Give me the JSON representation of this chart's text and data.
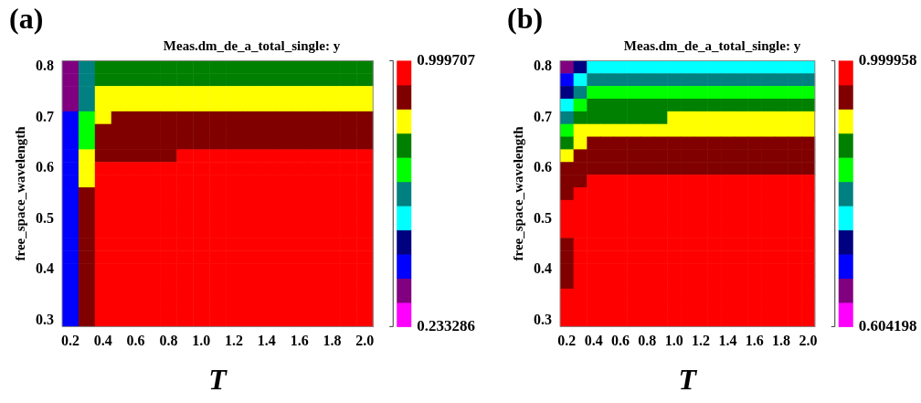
{
  "chart_data": [
    {
      "type": "heatmap",
      "title": "(a)",
      "subtitle": "Meas.dm_de_a_total_single: y",
      "xlabel": "T",
      "ylabel": "free_space_wavelength",
      "categories": [
        "0.2",
        null,
        "0.4",
        null,
        "0.6",
        null,
        "0.8",
        null,
        "1.0",
        null,
        "1.2",
        null,
        "1.4",
        null,
        "1.6",
        null,
        "1.8",
        null,
        "2.0"
      ],
      "y_categories": [
        "0.8",
        null,
        null,
        null,
        "0.7",
        null,
        null,
        null,
        "0.6",
        null,
        null,
        null,
        "0.5",
        null,
        null,
        null,
        "0.4",
        null,
        null,
        null,
        "0.3"
      ],
      "cells": [
        [
          0.338,
          0.616,
          0.756,
          0.756,
          0.756,
          0.756,
          0.756,
          0.756,
          0.756,
          0.756,
          0.756,
          0.756,
          0.756,
          0.756,
          0.756,
          0.756,
          0.756,
          0.756,
          0.756
        ],
        [
          0.338,
          0.616,
          0.756,
          0.756,
          0.756,
          0.756,
          0.756,
          0.756,
          0.756,
          0.756,
          0.756,
          0.756,
          0.756,
          0.756,
          0.756,
          0.756,
          0.756,
          0.756,
          0.756
        ],
        [
          0.338,
          0.616,
          0.826,
          0.826,
          0.826,
          0.826,
          0.826,
          0.826,
          0.826,
          0.826,
          0.826,
          0.826,
          0.826,
          0.826,
          0.826,
          0.826,
          0.826,
          0.826,
          0.826
        ],
        [
          0.338,
          0.616,
          0.826,
          0.826,
          0.826,
          0.826,
          0.826,
          0.826,
          0.826,
          0.826,
          0.826,
          0.826,
          0.826,
          0.826,
          0.826,
          0.826,
          0.826,
          0.826,
          0.826
        ],
        [
          0.407,
          0.686,
          0.826,
          0.895,
          0.895,
          0.895,
          0.895,
          0.895,
          0.895,
          0.895,
          0.895,
          0.895,
          0.895,
          0.895,
          0.895,
          0.895,
          0.895,
          0.895,
          0.895
        ],
        [
          0.407,
          0.686,
          0.895,
          0.895,
          0.895,
          0.895,
          0.895,
          0.895,
          0.895,
          0.895,
          0.895,
          0.895,
          0.895,
          0.895,
          0.895,
          0.895,
          0.895,
          0.895,
          0.895
        ],
        [
          0.407,
          0.686,
          0.895,
          0.895,
          0.895,
          0.895,
          0.895,
          0.895,
          0.895,
          0.895,
          0.895,
          0.895,
          0.895,
          0.895,
          0.895,
          0.895,
          0.895,
          0.895,
          0.895
        ],
        [
          0.407,
          0.826,
          0.895,
          0.895,
          0.895,
          0.895,
          0.895,
          0.965,
          0.965,
          0.965,
          0.965,
          0.965,
          0.965,
          0.965,
          0.965,
          0.965,
          0.965,
          0.965,
          0.965
        ],
        [
          0.407,
          0.826,
          0.965,
          0.965,
          0.965,
          0.965,
          0.965,
          0.965,
          0.965,
          0.965,
          0.965,
          0.965,
          0.965,
          0.965,
          0.965,
          0.965,
          0.965,
          0.965,
          0.965
        ],
        [
          0.407,
          0.826,
          0.965,
          0.965,
          0.965,
          0.965,
          0.965,
          0.965,
          0.965,
          0.965,
          0.965,
          0.965,
          0.965,
          0.965,
          0.965,
          0.965,
          0.965,
          0.965,
          0.965
        ],
        [
          0.407,
          0.895,
          0.965,
          0.965,
          0.965,
          0.965,
          0.965,
          0.965,
          0.965,
          0.965,
          0.965,
          0.965,
          0.965,
          0.965,
          0.965,
          0.965,
          0.965,
          0.965,
          0.965
        ],
        [
          0.407,
          0.895,
          0.965,
          0.965,
          0.965,
          0.965,
          0.965,
          0.965,
          0.965,
          0.965,
          0.965,
          0.965,
          0.965,
          0.965,
          0.965,
          0.965,
          0.965,
          0.965,
          0.965
        ],
        [
          0.407,
          0.895,
          0.965,
          0.965,
          0.965,
          0.965,
          0.965,
          0.965,
          0.965,
          0.965,
          0.965,
          0.965,
          0.965,
          0.965,
          0.965,
          0.965,
          0.965,
          0.965,
          0.965
        ],
        [
          0.407,
          0.895,
          0.965,
          0.965,
          0.965,
          0.965,
          0.965,
          0.965,
          0.965,
          0.965,
          0.965,
          0.965,
          0.965,
          0.965,
          0.965,
          0.965,
          0.965,
          0.965,
          0.965
        ],
        [
          0.407,
          0.895,
          0.965,
          0.965,
          0.965,
          0.965,
          0.965,
          0.965,
          0.965,
          0.965,
          0.965,
          0.965,
          0.965,
          0.965,
          0.965,
          0.965,
          0.965,
          0.965,
          0.965
        ],
        [
          0.407,
          0.895,
          0.965,
          0.965,
          0.965,
          0.965,
          0.965,
          0.965,
          0.965,
          0.965,
          0.965,
          0.965,
          0.965,
          0.965,
          0.965,
          0.965,
          0.965,
          0.965,
          0.965
        ],
        [
          0.407,
          0.895,
          0.965,
          0.965,
          0.965,
          0.965,
          0.965,
          0.965,
          0.965,
          0.965,
          0.965,
          0.965,
          0.965,
          0.965,
          0.965,
          0.965,
          0.965,
          0.965,
          0.965
        ],
        [
          0.407,
          0.895,
          0.965,
          0.965,
          0.965,
          0.965,
          0.965,
          0.965,
          0.965,
          0.965,
          0.965,
          0.965,
          0.965,
          0.965,
          0.965,
          0.965,
          0.965,
          0.965,
          0.965
        ],
        [
          0.407,
          0.895,
          0.965,
          0.965,
          0.965,
          0.965,
          0.965,
          0.965,
          0.965,
          0.965,
          0.965,
          0.965,
          0.965,
          0.965,
          0.965,
          0.965,
          0.965,
          0.965,
          0.965
        ],
        [
          0.407,
          0.895,
          0.965,
          0.965,
          0.965,
          0.965,
          0.965,
          0.965,
          0.965,
          0.965,
          0.965,
          0.965,
          0.965,
          0.965,
          0.965,
          0.965,
          0.965,
          0.965,
          0.965
        ],
        [
          0.407,
          0.895,
          0.965,
          0.965,
          0.965,
          0.965,
          0.965,
          0.965,
          0.965,
          0.965,
          0.965,
          0.965,
          0.965,
          0.965,
          0.965,
          0.965,
          0.965,
          0.965,
          0.965
        ]
      ],
      "clim": [
        0.233286,
        0.999707
      ],
      "cticks": [
        0.233286,
        0.999707
      ],
      "colors": [
        "#ff00ff",
        "#800080",
        "#0000ff",
        "#000080",
        "#00ffff",
        "#008080",
        "#00ff00",
        "#008000",
        "#ffff00",
        "#800000",
        "#ff0000"
      ]
    },
    {
      "type": "heatmap",
      "title": "(b)",
      "subtitle": "Meas.dm_de_a_total_single: y",
      "xlabel": "T",
      "ylabel": "free_space_wavelength",
      "categories": [
        "0.2",
        null,
        "0.4",
        null,
        "0.6",
        null,
        "0.8",
        null,
        "1.0",
        null,
        "1.2",
        null,
        "1.4",
        null,
        "1.6",
        null,
        "1.8",
        null,
        "2.0"
      ],
      "y_categories": [
        "0.8",
        null,
        null,
        null,
        "0.7",
        null,
        null,
        null,
        "0.6",
        null,
        null,
        null,
        "0.5",
        null,
        null,
        null,
        "0.4",
        null,
        null,
        null,
        "0.3"
      ],
      "cells": [
        [
          0.658,
          0.73,
          0.766,
          0.766,
          0.766,
          0.766,
          0.766,
          0.766,
          0.766,
          0.766,
          0.766,
          0.766,
          0.766,
          0.766,
          0.766,
          0.766,
          0.766,
          0.766,
          0.766
        ],
        [
          0.694,
          0.766,
          0.802,
          0.802,
          0.802,
          0.802,
          0.802,
          0.802,
          0.802,
          0.802,
          0.802,
          0.802,
          0.802,
          0.802,
          0.802,
          0.802,
          0.802,
          0.802,
          0.802
        ],
        [
          0.73,
          0.802,
          0.838,
          0.838,
          0.838,
          0.838,
          0.838,
          0.838,
          0.838,
          0.838,
          0.838,
          0.838,
          0.838,
          0.838,
          0.838,
          0.838,
          0.838,
          0.838,
          0.838
        ],
        [
          0.766,
          0.838,
          0.874,
          0.874,
          0.874,
          0.874,
          0.874,
          0.874,
          0.874,
          0.874,
          0.874,
          0.874,
          0.874,
          0.874,
          0.874,
          0.874,
          0.874,
          0.874,
          0.874
        ],
        [
          0.802,
          0.874,
          0.874,
          0.874,
          0.874,
          0.874,
          0.874,
          0.874,
          0.91,
          0.91,
          0.91,
          0.91,
          0.91,
          0.91,
          0.91,
          0.91,
          0.91,
          0.91,
          0.91
        ],
        [
          0.838,
          0.91,
          0.91,
          0.91,
          0.91,
          0.91,
          0.91,
          0.91,
          0.91,
          0.91,
          0.91,
          0.91,
          0.91,
          0.91,
          0.91,
          0.91,
          0.91,
          0.91,
          0.91
        ],
        [
          0.874,
          0.91,
          0.946,
          0.946,
          0.946,
          0.946,
          0.946,
          0.946,
          0.946,
          0.946,
          0.946,
          0.946,
          0.946,
          0.946,
          0.946,
          0.946,
          0.946,
          0.946,
          0.946
        ],
        [
          0.91,
          0.946,
          0.946,
          0.946,
          0.946,
          0.946,
          0.946,
          0.946,
          0.946,
          0.946,
          0.946,
          0.946,
          0.946,
          0.946,
          0.946,
          0.946,
          0.946,
          0.946,
          0.946
        ],
        [
          0.946,
          0.946,
          0.946,
          0.946,
          0.946,
          0.946,
          0.946,
          0.946,
          0.946,
          0.946,
          0.946,
          0.946,
          0.946,
          0.946,
          0.946,
          0.946,
          0.946,
          0.946,
          0.946
        ],
        [
          0.946,
          0.946,
          0.982,
          0.982,
          0.982,
          0.982,
          0.982,
          0.982,
          0.982,
          0.982,
          0.982,
          0.982,
          0.982,
          0.982,
          0.982,
          0.982,
          0.982,
          0.982,
          0.982
        ],
        [
          0.946,
          0.982,
          0.982,
          0.982,
          0.982,
          0.982,
          0.982,
          0.982,
          0.982,
          0.982,
          0.982,
          0.982,
          0.982,
          0.982,
          0.982,
          0.982,
          0.982,
          0.982,
          0.982
        ],
        [
          0.982,
          0.982,
          0.982,
          0.982,
          0.982,
          0.982,
          0.982,
          0.982,
          0.982,
          0.982,
          0.982,
          0.982,
          0.982,
          0.982,
          0.982,
          0.982,
          0.982,
          0.982,
          0.982
        ],
        [
          0.982,
          0.982,
          0.982,
          0.982,
          0.982,
          0.982,
          0.982,
          0.982,
          0.982,
          0.982,
          0.982,
          0.982,
          0.982,
          0.982,
          0.982,
          0.982,
          0.982,
          0.982,
          0.982
        ],
        [
          0.982,
          0.982,
          0.982,
          0.982,
          0.982,
          0.982,
          0.982,
          0.982,
          0.982,
          0.982,
          0.982,
          0.982,
          0.982,
          0.982,
          0.982,
          0.982,
          0.982,
          0.982,
          0.982
        ],
        [
          0.946,
          0.982,
          0.982,
          0.982,
          0.982,
          0.982,
          0.982,
          0.982,
          0.982,
          0.982,
          0.982,
          0.982,
          0.982,
          0.982,
          0.982,
          0.982,
          0.982,
          0.982,
          0.982
        ],
        [
          0.946,
          0.982,
          0.982,
          0.982,
          0.982,
          0.982,
          0.982,
          0.982,
          0.982,
          0.982,
          0.982,
          0.982,
          0.982,
          0.982,
          0.982,
          0.982,
          0.982,
          0.982,
          0.982
        ],
        [
          0.946,
          0.982,
          0.982,
          0.982,
          0.982,
          0.982,
          0.982,
          0.982,
          0.982,
          0.982,
          0.982,
          0.982,
          0.982,
          0.982,
          0.982,
          0.982,
          0.982,
          0.982,
          0.982
        ],
        [
          0.946,
          0.982,
          0.982,
          0.982,
          0.982,
          0.982,
          0.982,
          0.982,
          0.982,
          0.982,
          0.982,
          0.982,
          0.982,
          0.982,
          0.982,
          0.982,
          0.982,
          0.982,
          0.982
        ],
        [
          0.982,
          0.982,
          0.982,
          0.982,
          0.982,
          0.982,
          0.982,
          0.982,
          0.982,
          0.982,
          0.982,
          0.982,
          0.982,
          0.982,
          0.982,
          0.982,
          0.982,
          0.982,
          0.982
        ],
        [
          0.982,
          0.982,
          0.982,
          0.982,
          0.982,
          0.982,
          0.982,
          0.982,
          0.982,
          0.982,
          0.982,
          0.982,
          0.982,
          0.982,
          0.982,
          0.982,
          0.982,
          0.982,
          0.982
        ],
        [
          0.982,
          0.982,
          0.982,
          0.982,
          0.982,
          0.982,
          0.982,
          0.982,
          0.982,
          0.982,
          0.982,
          0.982,
          0.982,
          0.982,
          0.982,
          0.982,
          0.982,
          0.982,
          0.982
        ]
      ],
      "clim": [
        0.604198,
        0.999958
      ],
      "cticks": [
        0.604198,
        0.999958
      ],
      "colors": [
        "#ff00ff",
        "#800080",
        "#0000ff",
        "#000080",
        "#00ffff",
        "#008080",
        "#00ff00",
        "#008000",
        "#ffff00",
        "#800000",
        "#ff0000"
      ]
    }
  ]
}
